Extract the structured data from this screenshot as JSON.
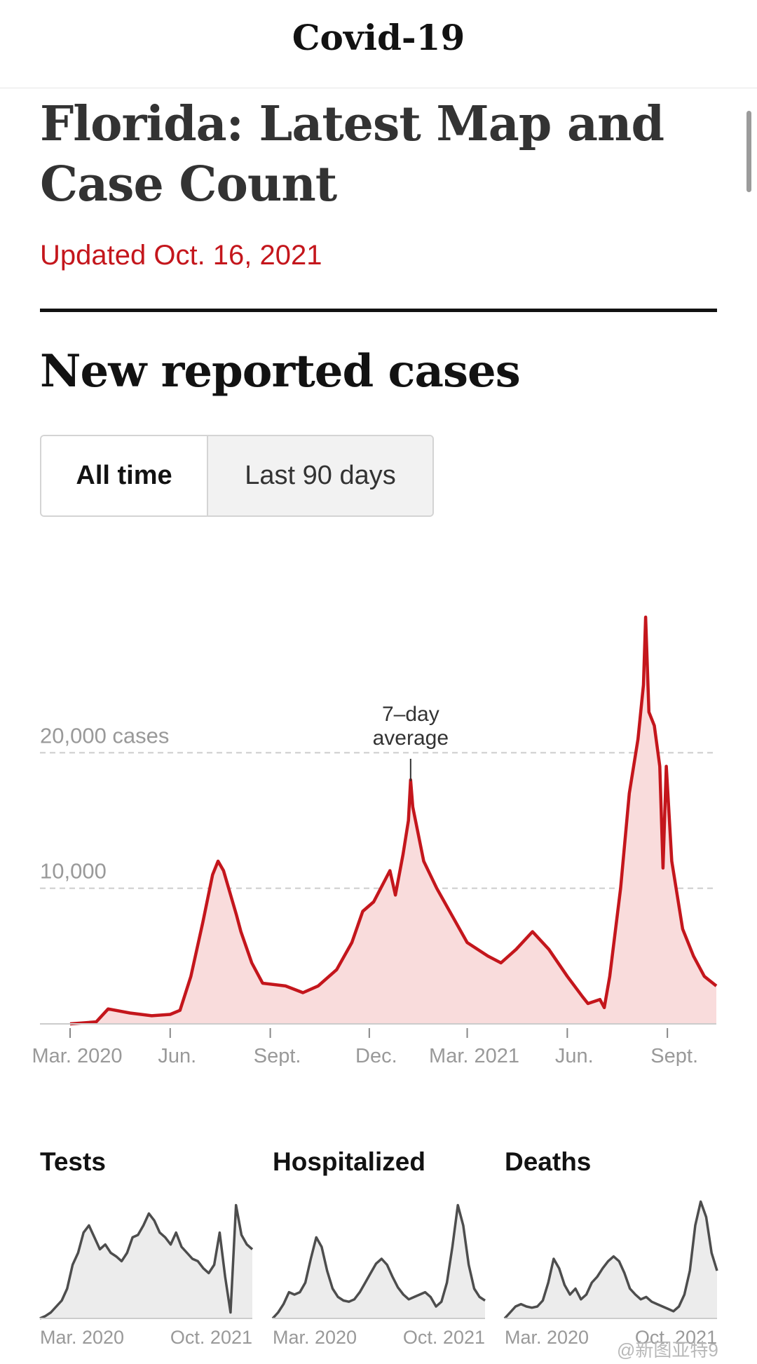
{
  "header": {
    "brand": "Covid-19"
  },
  "article": {
    "headline": "Florida: Latest Map and Case Count",
    "updated": "Updated Oct. 16, 2021"
  },
  "section": {
    "title": "New reported cases",
    "toggle": {
      "all_time": "All time",
      "last_90": "Last 90 days"
    }
  },
  "colors": {
    "accent": "#c4161c",
    "fill": "#f9dcdc",
    "small_line": "#4d4d4d",
    "small_fill": "#ececec"
  },
  "chart_data": [
    {
      "type": "area",
      "title": "",
      "series": [
        {
          "values_note": "7-day average"
        }
      ],
      "y_tick_labels": [
        "10,000",
        "20,000 cases"
      ],
      "y_ticks": [
        10000,
        20000
      ],
      "ylim": [
        0,
        30000
      ],
      "annotation": {
        "text_line1": "7–day",
        "text_line2": "average",
        "x": "2021-01-08",
        "y": 18000
      },
      "x_tick_labels": [
        "Mar. 2020",
        "Jun.",
        "Sept.",
        "Dec.",
        "Mar. 2021",
        "Jun.",
        "Sept."
      ],
      "x_ticks": [
        "2020-03-01",
        "2020-06-01",
        "2020-09-01",
        "2020-12-01",
        "2021-03-01",
        "2021-06-01",
        "2021-09-01"
      ],
      "x_range": [
        "2020-03-01",
        "2021-10-16"
      ],
      "points": [
        [
          "2020-03-01",
          0
        ],
        [
          "2020-03-25",
          150
        ],
        [
          "2020-04-05",
          1100
        ],
        [
          "2020-04-25",
          800
        ],
        [
          "2020-05-15",
          600
        ],
        [
          "2020-06-01",
          700
        ],
        [
          "2020-06-10",
          1000
        ],
        [
          "2020-06-20",
          3500
        ],
        [
          "2020-07-01",
          7500
        ],
        [
          "2020-07-10",
          11000
        ],
        [
          "2020-07-15",
          12000
        ],
        [
          "2020-07-20",
          11300
        ],
        [
          "2020-08-01",
          8000
        ],
        [
          "2020-08-05",
          6800
        ],
        [
          "2020-08-15",
          4500
        ],
        [
          "2020-08-25",
          3000
        ],
        [
          "2020-09-15",
          2800
        ],
        [
          "2020-10-01",
          2300
        ],
        [
          "2020-10-15",
          2800
        ],
        [
          "2020-11-01",
          4000
        ],
        [
          "2020-11-15",
          6000
        ],
        [
          "2020-11-25",
          8300
        ],
        [
          "2020-12-05",
          9000
        ],
        [
          "2020-12-20",
          11300
        ],
        [
          "2020-12-25",
          9500
        ],
        [
          "2021-01-01",
          12500
        ],
        [
          "2021-01-06",
          15000
        ],
        [
          "2021-01-08",
          18000
        ],
        [
          "2021-01-10",
          16000
        ],
        [
          "2021-01-20",
          12000
        ],
        [
          "2021-02-01",
          10000
        ],
        [
          "2021-02-15",
          8000
        ],
        [
          "2021-03-01",
          6000
        ],
        [
          "2021-03-20",
          5000
        ],
        [
          "2021-04-01",
          4500
        ],
        [
          "2021-04-15",
          5500
        ],
        [
          "2021-04-30",
          6800
        ],
        [
          "2021-05-15",
          5500
        ],
        [
          "2021-06-01",
          3500
        ],
        [
          "2021-06-15",
          2000
        ],
        [
          "2021-06-20",
          1500
        ],
        [
          "2021-07-01",
          1800
        ],
        [
          "2021-07-05",
          1200
        ],
        [
          "2021-07-10",
          3500
        ],
        [
          "2021-07-20",
          10000
        ],
        [
          "2021-07-28",
          17000
        ],
        [
          "2021-08-05",
          21000
        ],
        [
          "2021-08-10",
          25000
        ],
        [
          "2021-08-12",
          30000
        ],
        [
          "2021-08-15",
          23000
        ],
        [
          "2021-08-20",
          22000
        ],
        [
          "2021-08-25",
          19000
        ],
        [
          "2021-08-28",
          11500
        ],
        [
          "2021-08-31",
          19000
        ],
        [
          "2021-09-05",
          12000
        ],
        [
          "2021-09-15",
          7000
        ],
        [
          "2021-09-25",
          5000
        ],
        [
          "2021-10-05",
          3500
        ],
        [
          "2021-10-16",
          2800
        ]
      ]
    },
    {
      "type": "area",
      "title": "Tests",
      "x_tick_labels": [
        "Mar. 2020",
        "Oct. 2021"
      ],
      "x_range": [
        "2020-03-01",
        "2021-10-16"
      ],
      "values": [
        0,
        0.02,
        0.05,
        0.1,
        0.15,
        0.25,
        0.45,
        0.55,
        0.72,
        0.78,
        0.68,
        0.58,
        0.62,
        0.55,
        0.52,
        0.48,
        0.55,
        0.68,
        0.7,
        0.78,
        0.88,
        0.82,
        0.72,
        0.68,
        0.62,
        0.72,
        0.6,
        0.55,
        0.5,
        0.48,
        0.42,
        0.38,
        0.45,
        0.72,
        0.35,
        0.05,
        0.95,
        0.7,
        0.62,
        0.58
      ]
    },
    {
      "type": "area",
      "title": "Hospitalized",
      "x_tick_labels": [
        "Mar. 2020",
        "Oct. 2021"
      ],
      "x_range": [
        "2020-03-01",
        "2021-10-16"
      ],
      "values": [
        0,
        0.05,
        0.12,
        0.22,
        0.2,
        0.22,
        0.3,
        0.5,
        0.68,
        0.6,
        0.4,
        0.25,
        0.18,
        0.15,
        0.14,
        0.16,
        0.22,
        0.3,
        0.38,
        0.46,
        0.5,
        0.45,
        0.35,
        0.26,
        0.2,
        0.16,
        0.18,
        0.2,
        0.22,
        0.18,
        0.1,
        0.14,
        0.3,
        0.6,
        0.95,
        0.78,
        0.45,
        0.25,
        0.18,
        0.15
      ]
    },
    {
      "type": "area",
      "title": "Deaths",
      "x_tick_labels": [
        "Mar. 2020",
        "Oct. 2021"
      ],
      "x_range": [
        "2020-03-01",
        "2021-10-16"
      ],
      "values": [
        0,
        0.05,
        0.1,
        0.12,
        0.1,
        0.09,
        0.1,
        0.15,
        0.3,
        0.5,
        0.42,
        0.28,
        0.2,
        0.25,
        0.16,
        0.2,
        0.3,
        0.35,
        0.42,
        0.48,
        0.52,
        0.48,
        0.38,
        0.25,
        0.2,
        0.16,
        0.18,
        0.14,
        0.12,
        0.1,
        0.08,
        0.06,
        0.1,
        0.2,
        0.4,
        0.78,
        0.98,
        0.85,
        0.55,
        0.4
      ]
    }
  ],
  "watermark": "@新图亚特9"
}
